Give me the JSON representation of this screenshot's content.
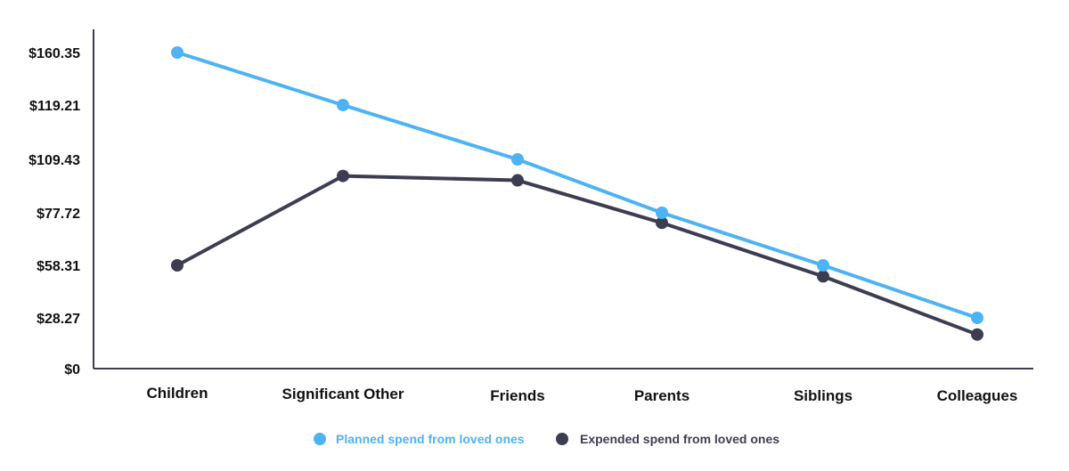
{
  "chart_data": {
    "type": "line",
    "categories": [
      "Children",
      "Significant Other",
      "Friends",
      "Parents",
      "Siblings",
      "Colleagues"
    ],
    "y_tick_labels": [
      "$160.35",
      "$119.21",
      "$109.43",
      "$77.72",
      "$58.31",
      "$28.27",
      "$0"
    ],
    "series": [
      {
        "name": "Planned spend from loved ones",
        "color": "#4db3f5",
        "values": [
          160.35,
          119.21,
          109.43,
          77.72,
          58.31,
          28.27
        ]
      },
      {
        "name": "Expended spend from loved ones",
        "color": "#3d3d52",
        "values": [
          58.31,
          99.6,
          97.0,
          74.0,
          52.0,
          19.0
        ]
      }
    ],
    "axis_color": "#3d3d52",
    "grid": false,
    "legend_position": "bottom-center"
  }
}
